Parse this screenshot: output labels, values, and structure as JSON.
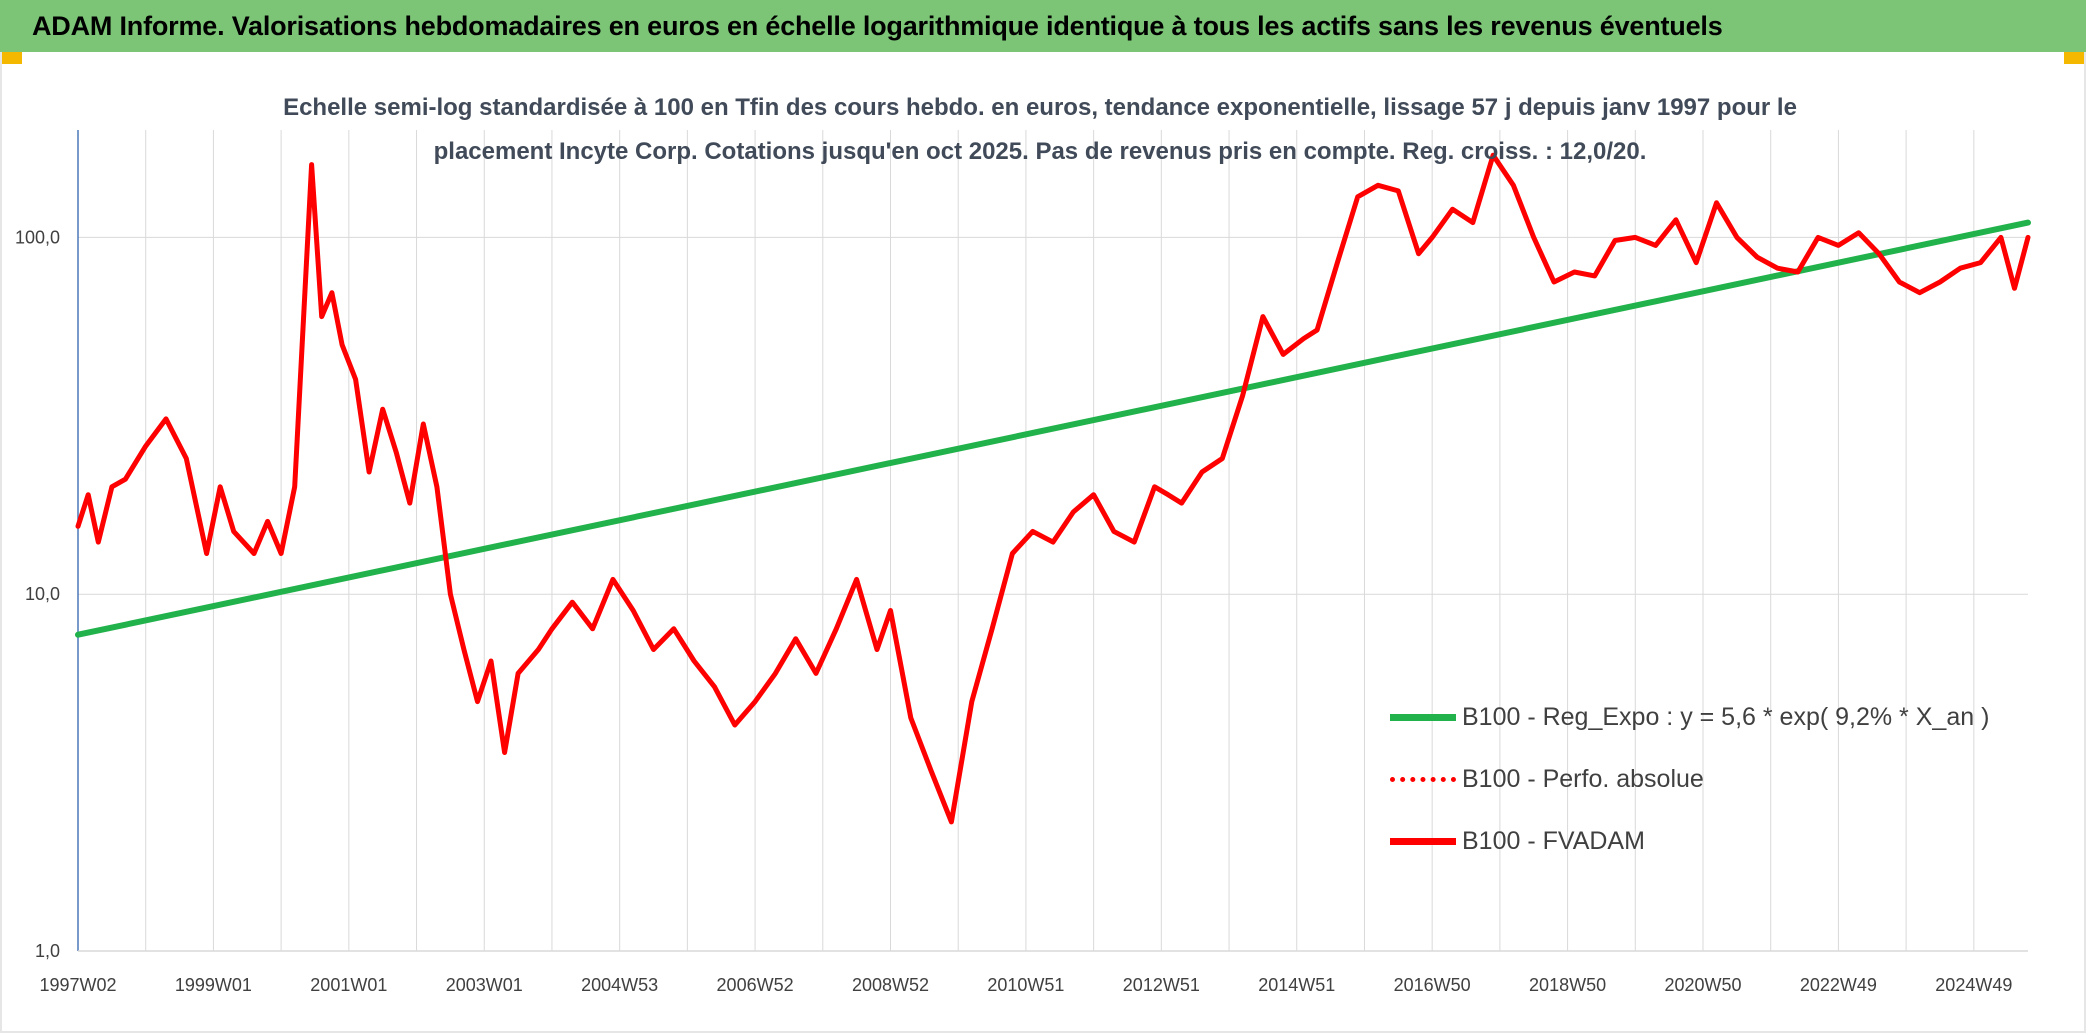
{
  "header": {
    "title": "ADAM Informe. Valorisations hebdomadaires en euros en échelle logarithmique identique à tous les actifs sans les revenus éventuels"
  },
  "colors": {
    "banner": "#7cc576",
    "corner": "#f5b800",
    "trend": "#22b24c",
    "price": "#ff0000",
    "grid": "#d9d9d9",
    "axis": "#4a78b8"
  },
  "chart_data": {
    "type": "line",
    "title": "Echelle semi-log standardisée à 100 en Tfin des cours hebdo. en euros, tendance exponentielle, lissage 57 j depuis janv 1997 pour le placement Incyte Corp. Cotations jusqu'en oct 2025. Pas de revenus pris en compte. Reg. croiss. : 12,0/20.",
    "y_scale": "log",
    "ylim": [
      1,
      200
    ],
    "y_ticks": [
      "1,0",
      "10,0",
      "100,0"
    ],
    "x_range": [
      1997.0,
      2025.8
    ],
    "x_ticks": [
      {
        "label": "1997W02",
        "x": 1997.0
      },
      {
        "label": "1999W01",
        "x": 1999.0
      },
      {
        "label": "2001W01",
        "x": 2001.0
      },
      {
        "label": "2003W01",
        "x": 2003.0
      },
      {
        "label": "2004W53",
        "x": 2005.0
      },
      {
        "label": "2006W52",
        "x": 2007.0
      },
      {
        "label": "2008W52",
        "x": 2009.0
      },
      {
        "label": "2010W51",
        "x": 2011.0
      },
      {
        "label": "2012W51",
        "x": 2013.0
      },
      {
        "label": "2014W51",
        "x": 2015.0
      },
      {
        "label": "2016W50",
        "x": 2017.0
      },
      {
        "label": "2018W50",
        "x": 2019.0
      },
      {
        "label": "2020W50",
        "x": 2021.0
      },
      {
        "label": "2022W49",
        "x": 2023.0
      },
      {
        "label": "2024W49",
        "x": 2025.0
      }
    ],
    "legend": [
      {
        "name": "B100 - Reg_Expo : y = 5,6 * exp( 9,2% *  X_an )",
        "style": "solid-green"
      },
      {
        "name": "B100 - Perfo. absolue",
        "style": "dotted-red"
      },
      {
        "name": "B100 - FVADAM",
        "style": "solid-red"
      }
    ],
    "series": [
      {
        "name": "B100 - Reg_Expo : y = 5,6 * exp( 9,2% *  X_an )",
        "color": "#22b24c",
        "x": [
          1997.0,
          2025.8
        ],
        "values": [
          7.7,
          110
        ]
      },
      {
        "name": "B100 - FVADAM",
        "color": "#ff0000",
        "x": [
          1997.0,
          1997.15,
          1997.3,
          1997.5,
          1997.7,
          1998.0,
          1998.3,
          1998.6,
          1998.9,
          1999.1,
          1999.3,
          1999.6,
          1999.8,
          2000.0,
          2000.2,
          2000.45,
          2000.6,
          2000.75,
          2000.9,
          2001.1,
          2001.3,
          2001.5,
          2001.7,
          2001.9,
          2002.1,
          2002.3,
          2002.5,
          2002.7,
          2002.9,
          2003.1,
          2003.3,
          2003.5,
          2003.8,
          2004.0,
          2004.3,
          2004.6,
          2004.9,
          2005.2,
          2005.5,
          2005.8,
          2006.1,
          2006.4,
          2006.7,
          2007.0,
          2007.3,
          2007.6,
          2007.9,
          2008.2,
          2008.5,
          2008.8,
          2009.0,
          2009.3,
          2009.6,
          2009.9,
          2010.2,
          2010.5,
          2010.8,
          2011.1,
          2011.4,
          2011.7,
          2012.0,
          2012.3,
          2012.6,
          2012.9,
          2013.1,
          2013.3,
          2013.6,
          2013.9,
          2014.2,
          2014.5,
          2014.8,
          2015.1,
          2015.3,
          2015.6,
          2015.9,
          2016.2,
          2016.5,
          2016.8,
          2017.0,
          2017.3,
          2017.6,
          2017.9,
          2018.2,
          2018.5,
          2018.8,
          2019.1,
          2019.4,
          2019.7,
          2020.0,
          2020.3,
          2020.6,
          2020.9,
          2021.2,
          2021.5,
          2021.8,
          2022.1,
          2022.4,
          2022.7,
          2023.0,
          2023.3,
          2023.6,
          2023.9,
          2024.2,
          2024.5,
          2024.8,
          2025.1,
          2025.4,
          2025.6,
          2025.8
        ],
        "values": [
          15.5,
          19,
          14,
          20,
          21,
          26,
          31,
          24,
          13,
          20,
          15,
          13,
          16,
          13,
          20,
          160,
          60,
          70,
          50,
          40,
          22,
          33,
          25,
          18,
          30,
          20,
          10,
          7,
          5,
          6.5,
          3.6,
          6,
          7,
          8,
          9.5,
          8,
          11,
          9,
          7,
          8,
          6.5,
          5.5,
          4.3,
          5,
          6,
          7.5,
          6,
          8,
          11,
          7,
          9,
          4.5,
          3.2,
          2.3,
          5,
          8,
          13,
          15,
          14,
          17,
          19,
          15,
          14,
          20,
          19,
          18,
          22,
          24,
          36,
          60,
          47,
          52,
          55,
          85,
          130,
          140,
          135,
          90,
          100,
          120,
          110,
          170,
          140,
          100,
          75,
          80,
          78,
          98,
          100,
          95,
          112,
          85,
          125,
          100,
          88,
          82,
          80,
          100,
          95,
          103,
          90,
          75,
          70,
          75,
          82,
          85,
          100,
          72,
          100
        ]
      }
    ]
  }
}
